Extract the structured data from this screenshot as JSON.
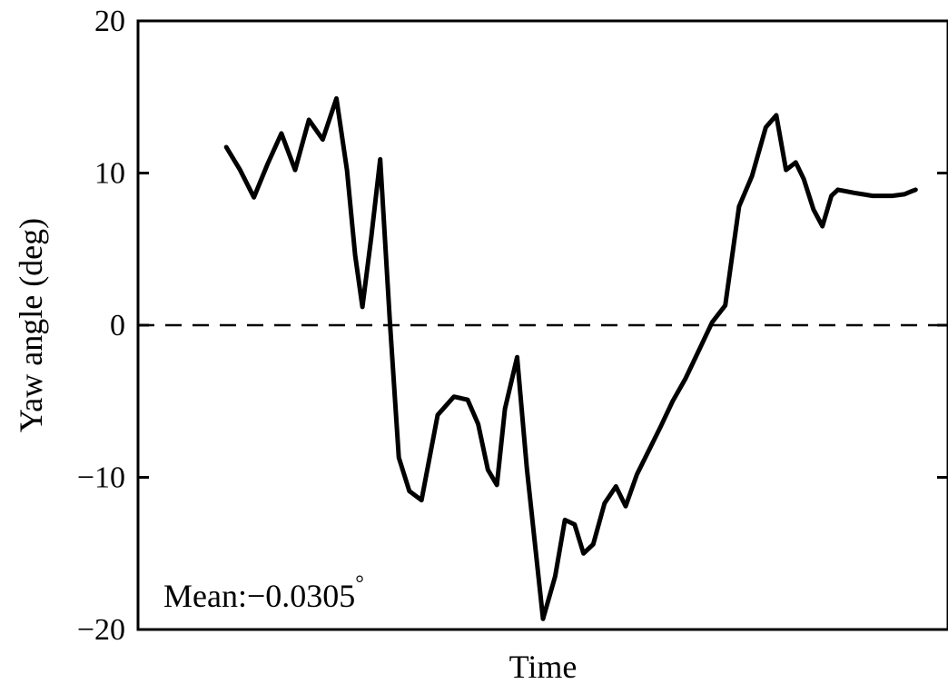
{
  "chart_data": {
    "type": "line",
    "xlabel": "Time",
    "ylabel": "Yaw angle (deg)",
    "ylim": [
      -20,
      20
    ],
    "xlim": [
      0,
      100
    ],
    "yticks": [
      20,
      10,
      0,
      -10,
      -20
    ],
    "ytick_labels": [
      "20",
      "10",
      "0",
      "−10",
      "−20"
    ],
    "grid": false,
    "reference_line": {
      "y": 0,
      "style": "dashed"
    },
    "annotation": {
      "text": "Mean:−0.0305",
      "degree_symbol": "°"
    },
    "series": [
      {
        "x": [
          10.9,
          12.6,
          14.3,
          16.0,
          17.7,
          19.4,
          21.1,
          22.8,
          24.5,
          25.8,
          26.8,
          27.7,
          28.8,
          29.9,
          31.1,
          32.2,
          33.5,
          35.0,
          37.0,
          39.0,
          40.7,
          42.0,
          43.2,
          44.3,
          45.3,
          46.8,
          48.0,
          50.0,
          51.5,
          52.7,
          53.9,
          55.0,
          56.2,
          57.6,
          59.0,
          60.2,
          61.6,
          63.0,
          64.5,
          66.0,
          67.6,
          69.2,
          70.9,
          72.5,
          74.2,
          75.8,
          77.5,
          78.8,
          80.0,
          81.2,
          82.2,
          83.4,
          84.5,
          85.6,
          86.4,
          87.4,
          88.4,
          89.5,
          90.7,
          92.0,
          93.1,
          94.6,
          95.5,
          96.0
        ],
        "y": [
          11.7,
          10.2,
          8.4,
          10.6,
          12.6,
          10.2,
          13.5,
          12.2,
          14.9,
          10.2,
          4.6,
          1.2,
          5.8,
          10.9,
          0.2,
          -8.7,
          -10.9,
          -11.5,
          -5.9,
          -4.7,
          -4.9,
          -6.5,
          -9.5,
          -10.5,
          -5.5,
          -2.1,
          -9.4,
          -19.3,
          -16.5,
          -12.8,
          -13.1,
          -15.0,
          -14.4,
          -11.7,
          -10.6,
          -11.9,
          -9.8,
          -8.3,
          -6.7,
          -5.0,
          -3.5,
          -1.7,
          0.2,
          1.3,
          7.8,
          9.8,
          13.0,
          13.8,
          10.2,
          10.7,
          9.6,
          7.6,
          6.5,
          8.5,
          8.9,
          8.8,
          8.7,
          8.6,
          8.5,
          8.5,
          8.5,
          8.6,
          8.8,
          8.9
        ]
      }
    ]
  }
}
